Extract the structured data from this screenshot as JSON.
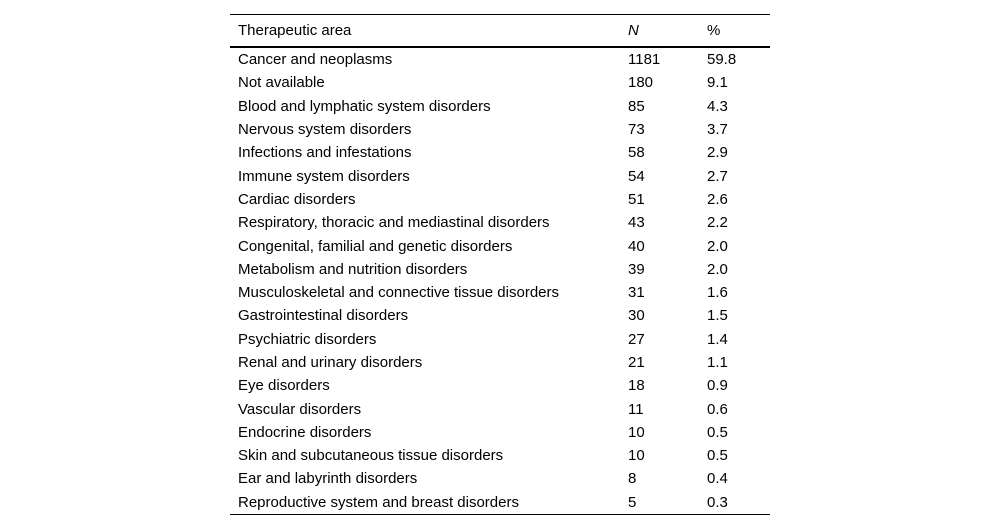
{
  "page": {
    "background": "#ffffff",
    "text_color": "#000000",
    "rule_color": "#000000"
  },
  "table": {
    "headers": {
      "area": "Therapeutic area",
      "n": "N",
      "pct": "%"
    },
    "rows": [
      {
        "area": "Cancer and neoplasms",
        "n": "1181",
        "pct": "59.8"
      },
      {
        "area": "Not available",
        "n": "180",
        "pct": "9.1"
      },
      {
        "area": "Blood and lymphatic system disorders",
        "n": "85",
        "pct": "4.3"
      },
      {
        "area": "Nervous system disorders",
        "n": "73",
        "pct": "3.7"
      },
      {
        "area": "Infections and infestations",
        "n": "58",
        "pct": "2.9"
      },
      {
        "area": "Immune system disorders",
        "n": "54",
        "pct": "2.7"
      },
      {
        "area": "Cardiac disorders",
        "n": "51",
        "pct": "2.6"
      },
      {
        "area": "Respiratory, thoracic and mediastinal disorders",
        "n": "43",
        "pct": "2.2"
      },
      {
        "area": "Congenital, familial and genetic disorders",
        "n": "40",
        "pct": "2.0"
      },
      {
        "area": "Metabolism and nutrition disorders",
        "n": "39",
        "pct": "2.0"
      },
      {
        "area": "Musculoskeletal and connective tissue disorders",
        "n": "31",
        "pct": "1.6"
      },
      {
        "area": "Gastrointestinal disorders",
        "n": "30",
        "pct": "1.5"
      },
      {
        "area": "Psychiatric disorders",
        "n": "27",
        "pct": "1.4"
      },
      {
        "area": "Renal and urinary disorders",
        "n": "21",
        "pct": "1.1"
      },
      {
        "area": "Eye disorders",
        "n": "18",
        "pct": "0.9"
      },
      {
        "area": "Vascular disorders",
        "n": "11",
        "pct": "0.6"
      },
      {
        "area": "Endocrine disorders",
        "n": "10",
        "pct": "0.5"
      },
      {
        "area": "Skin and subcutaneous tissue disorders",
        "n": "10",
        "pct": "0.5"
      },
      {
        "area": "Ear and labyrinth disorders",
        "n": "8",
        "pct": "0.4"
      },
      {
        "area": "Reproductive system and breast disorders",
        "n": "5",
        "pct": "0.3"
      }
    ]
  }
}
